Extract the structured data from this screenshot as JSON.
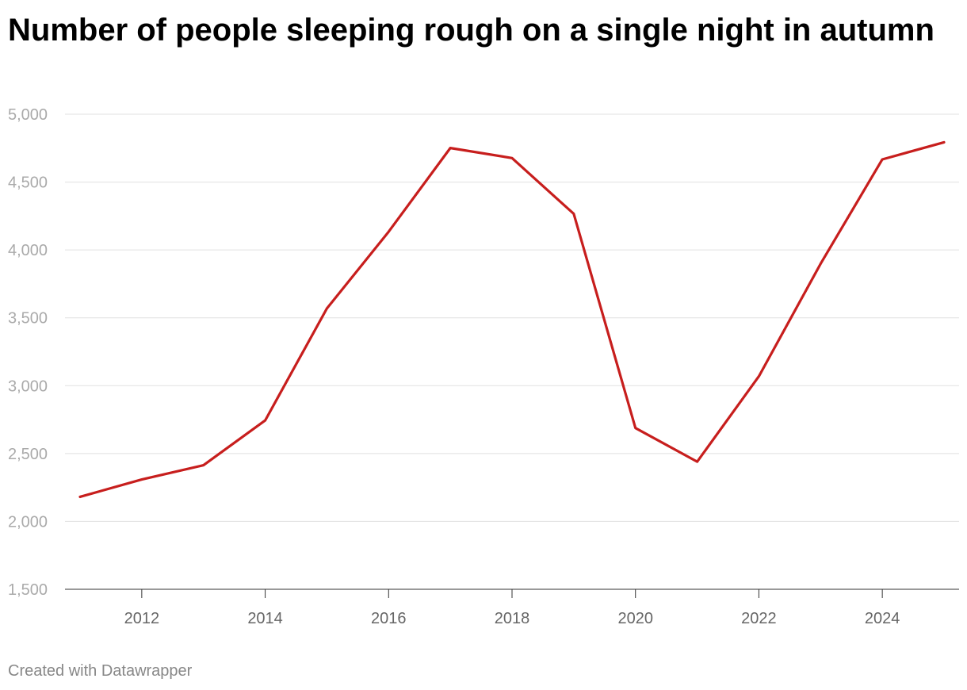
{
  "chart_data": {
    "type": "line",
    "title": "Number of people sleeping rough on a single night in autumn",
    "xlabel": "",
    "ylabel": "",
    "x": [
      2011,
      2012,
      2013,
      2014,
      2015,
      2016,
      2017,
      2018,
      2019,
      2020,
      2021,
      2022,
      2023,
      2024,
      2025
    ],
    "series": [
      {
        "values": [
          2181,
          2309,
          2414,
          2744,
          3569,
          4134,
          4751,
          4677,
          4266,
          2688,
          2440,
          3069,
          3898,
          4667,
          4793
        ]
      }
    ],
    "ylim": [
      1500,
      5000
    ],
    "xlim": [
      2011,
      2025
    ],
    "y_ticks": [
      1500,
      2000,
      2500,
      3000,
      3500,
      4000,
      4500,
      5000
    ],
    "y_tick_labels": [
      "1,500",
      "2,000",
      "2,500",
      "3,000",
      "3,500",
      "4,000",
      "4,500",
      "5,000"
    ],
    "x_ticks": [
      2012,
      2014,
      2016,
      2018,
      2020,
      2022,
      2024
    ],
    "x_tick_labels": [
      "2012",
      "2014",
      "2016",
      "2018",
      "2020",
      "2022",
      "2024"
    ],
    "grid": "horizontal",
    "line_color": "#c71e1d",
    "grid_color": "#e0e0e0",
    "tick_label_color": "#aaaaaa",
    "x_tick_label_color": "#666666"
  },
  "footer": "Created with Datawrapper"
}
